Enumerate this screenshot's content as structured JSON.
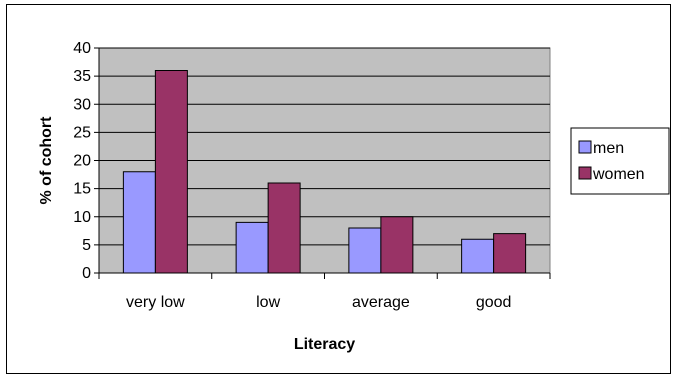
{
  "chart_data": {
    "type": "bar",
    "title": "",
    "xlabel": "Literacy",
    "ylabel": "% of cohort",
    "categories": [
      "very low",
      "low",
      "average",
      "good"
    ],
    "series": [
      {
        "name": "men",
        "values": [
          18,
          9,
          8,
          6
        ],
        "color": "#9999ff"
      },
      {
        "name": "women",
        "values": [
          36,
          16,
          10,
          7
        ],
        "color": "#993366"
      }
    ],
    "ylim": [
      0,
      40
    ],
    "yticks": [
      "0",
      "5",
      "10",
      "15",
      "20",
      "25",
      "30",
      "35",
      "40"
    ],
    "grid": true,
    "plot_background": "#c0c0c0",
    "legend_position": "right"
  }
}
